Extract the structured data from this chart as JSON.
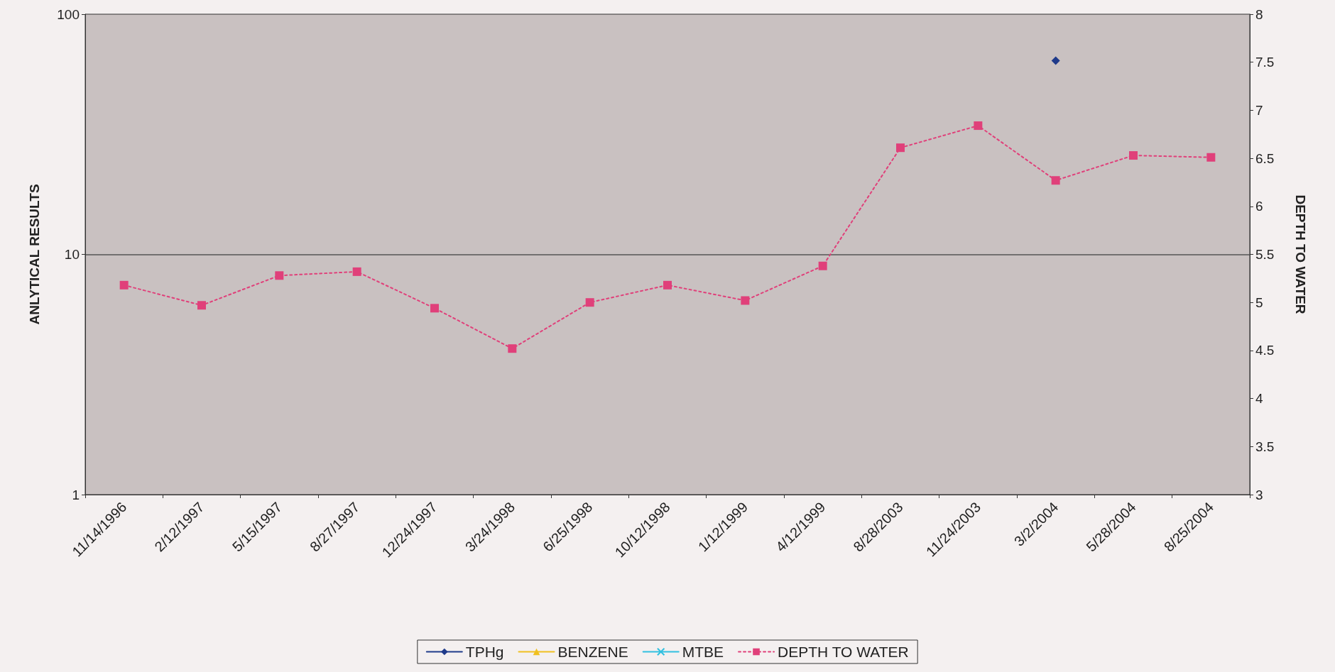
{
  "chart_data": {
    "type": "line",
    "ylabel": "ANLYTICAL RESULTS",
    "y2label": "DEPTH TO WATER",
    "categories": [
      "11/14/1996",
      "2/12/1997",
      "5/15/1997",
      "8/27/1997",
      "12/24/1997",
      "3/24/1998",
      "6/25/1998",
      "10/12/1998",
      "1/12/1999",
      "4/12/1999",
      "8/28/2003",
      "11/24/2003",
      "3/2/2004",
      "5/28/2004",
      "8/25/2004"
    ],
    "series": [
      {
        "name": "TPHg",
        "color": "#1f3a8a",
        "marker": "diamond",
        "line_style": "solid",
        "values": [
          null,
          null,
          null,
          null,
          null,
          null,
          null,
          null,
          null,
          null,
          null,
          null,
          64,
          null,
          null
        ]
      },
      {
        "name": "BENZENE",
        "color": "#f0c020",
        "marker": "triangle",
        "line_style": "solid",
        "values": [
          null,
          null,
          null,
          null,
          null,
          null,
          null,
          null,
          null,
          null,
          null,
          null,
          null,
          null,
          null
        ]
      },
      {
        "name": "MTBE",
        "color": "#30c0e0",
        "marker": "cross",
        "line_style": "solid",
        "values": [
          null,
          null,
          null,
          null,
          null,
          null,
          null,
          null,
          null,
          null,
          null,
          null,
          null,
          null,
          null
        ]
      },
      {
        "name": "DEPTH TO WATER",
        "color": "#e0407a",
        "marker": "square",
        "line_style": "dotted",
        "axis": "y2",
        "values": [
          5.18,
          4.97,
          5.28,
          5.32,
          4.94,
          4.52,
          5.0,
          5.18,
          5.02,
          5.38,
          6.61,
          6.84,
          6.27,
          6.53,
          6.51
        ]
      }
    ],
    "log": "y",
    "ylim": [
      1,
      100
    ],
    "yticks": [
      1,
      10,
      100
    ],
    "y2lim": [
      3,
      8
    ],
    "y2ticks": [
      3,
      3.5,
      4,
      4.5,
      5,
      5.5,
      6,
      6.5,
      7,
      7.5,
      8
    ],
    "grid": "y",
    "legend": "bottom"
  }
}
